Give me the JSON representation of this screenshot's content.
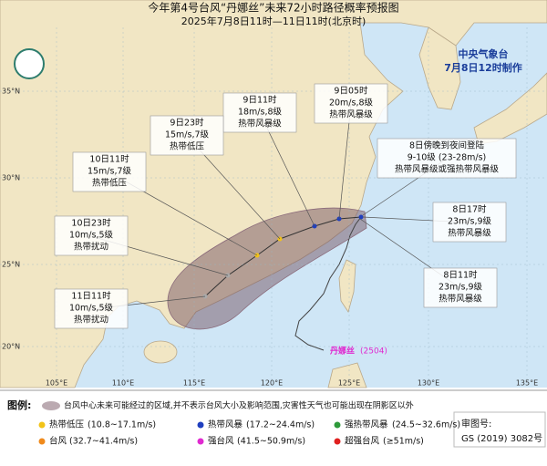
{
  "header": {
    "title": "今年第4号台风“丹娜丝”未来72小时路径概率预报图",
    "subtitle": "2025年7月8日11时—11日11时(北京时)",
    "agency": "中央气象台",
    "issued": "7月8日12时制作"
  },
  "map": {
    "lon_labels": [
      "105°E",
      "110°E",
      "115°E",
      "120°E",
      "125°E",
      "130°E",
      "135°E"
    ],
    "lat_labels": [
      "35°N",
      "30°N",
      "25°N",
      "20°N"
    ],
    "storm_label": "丹娜丝",
    "storm_id": "(2504)"
  },
  "callouts": [
    {
      "lines": [
        "9日05时",
        "20m/s,8级",
        "热带风暴级"
      ]
    },
    {
      "lines": [
        "9日11时",
        "18m/s,8级",
        "热带风暴级"
      ]
    },
    {
      "lines": [
        "9日23时",
        "15m/s,7级",
        "热带低压"
      ]
    },
    {
      "lines": [
        "10日11时",
        "15m/s,7级",
        "热带低压"
      ]
    },
    {
      "lines": [
        "10日23时",
        "10m/s,5级",
        "热带扰动"
      ]
    },
    {
      "lines": [
        "11日11时",
        "10m/s,5级",
        "热带扰动"
      ]
    },
    {
      "lines": [
        "8日傍晚到夜间登陆",
        "9-10级 (23-28m/s)",
        "热带风暴级或强热带风暴级"
      ]
    },
    {
      "lines": [
        "8日17时",
        "23m/s,9级",
        "热带风暴级"
      ]
    },
    {
      "lines": [
        "8日11时",
        "23m/s,9级",
        "热带风暴级"
      ]
    }
  ],
  "legend": {
    "heading": "图例:",
    "cone_note": "台风中心未来可能经过的区域,并不表示台风大小及影响范围,灾害性天气也可能出现在阴影区以外",
    "items": [
      {
        "name": "热带低压",
        "range": "(10.8~17.1m/s)",
        "color": "#f2c318"
      },
      {
        "name": "热带风暴",
        "range": "(17.2~24.4m/s)",
        "color": "#1f3fbf"
      },
      {
        "name": "强热带风暴",
        "range": "(24.5~32.6m/s)",
        "color": "#2e9a3a"
      },
      {
        "name": "台风",
        "range": "(32.7~41.4m/s)",
        "color": "#f08a1c"
      },
      {
        "name": "强台风",
        "range": "(41.5~50.9m/s)",
        "color": "#e02ad0"
      },
      {
        "name": "超强台风",
        "range": "(≥51m/s)",
        "color": "#e0201f"
      }
    ]
  },
  "footer": {
    "label": "审图号:",
    "code": "GS (2019) 3082号"
  }
}
